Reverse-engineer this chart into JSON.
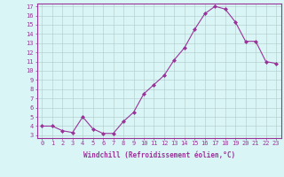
{
  "x": [
    0,
    1,
    2,
    3,
    4,
    5,
    6,
    7,
    8,
    9,
    10,
    11,
    12,
    13,
    14,
    15,
    16,
    17,
    18,
    19,
    20,
    21,
    22,
    23
  ],
  "y": [
    4.0,
    4.0,
    3.5,
    3.3,
    5.0,
    3.7,
    3.2,
    3.2,
    4.5,
    5.5,
    7.5,
    8.5,
    9.5,
    11.2,
    12.5,
    14.5,
    16.2,
    17.0,
    16.7,
    15.3,
    13.2,
    13.2,
    11.0,
    10.8
  ],
  "line_color": "#993399",
  "marker": "D",
  "marker_size": 2.0,
  "bg_color": "#d9f5f5",
  "grid_color": "#b0c8c8",
  "xlabel": "Windchill (Refroidissement éolien,°C)",
  "ylim_min": 3,
  "ylim_max": 17,
  "xlim_min": 0,
  "xlim_max": 23,
  "yticks": [
    3,
    4,
    5,
    6,
    7,
    8,
    9,
    10,
    11,
    12,
    13,
    14,
    15,
    16,
    17
  ],
  "xticks": [
    0,
    1,
    2,
    3,
    4,
    5,
    6,
    7,
    8,
    9,
    10,
    11,
    12,
    13,
    14,
    15,
    16,
    17,
    18,
    19,
    20,
    21,
    22,
    23
  ],
  "axis_color": "#993399",
  "label_color": "#993399",
  "tick_color": "#993399",
  "tick_fontsize": 5.0,
  "xlabel_fontsize": 5.5,
  "linewidth": 0.8
}
